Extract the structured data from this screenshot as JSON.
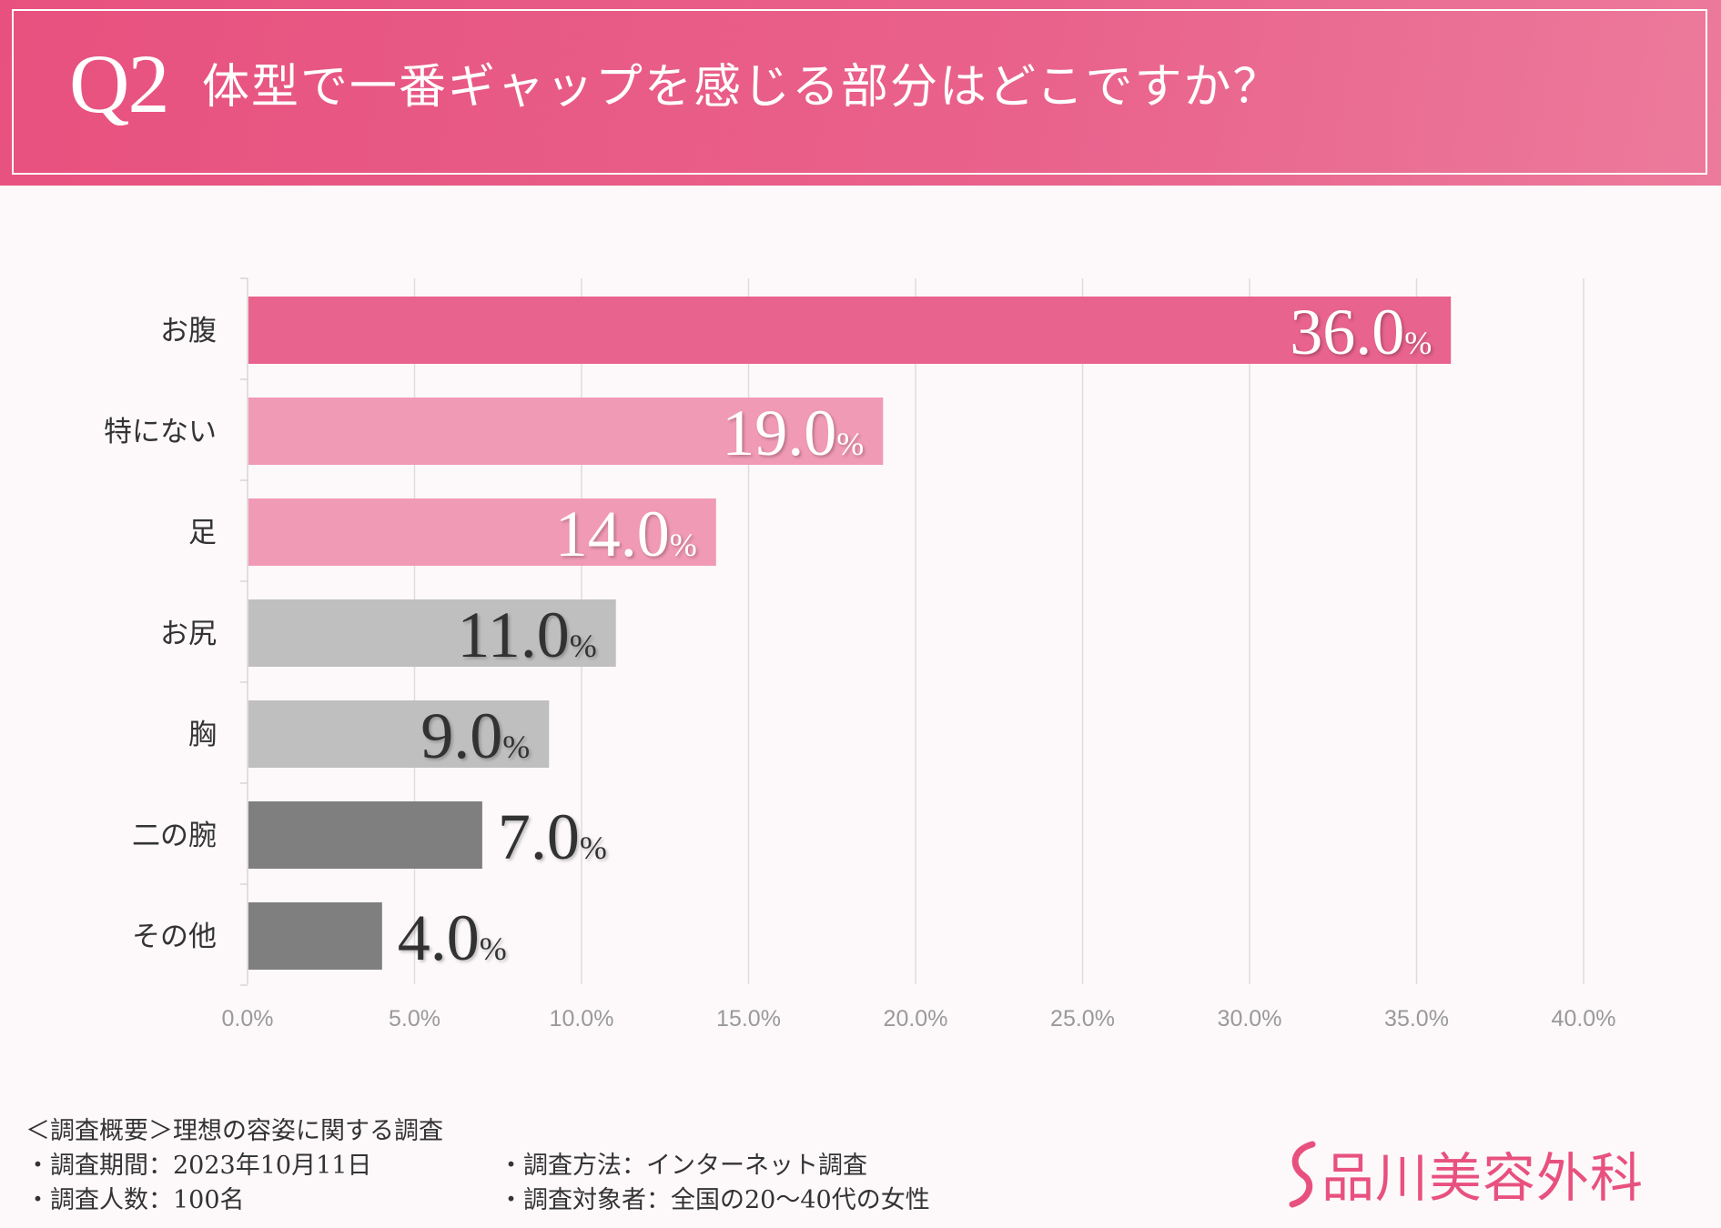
{
  "header": {
    "question_number": "Q2",
    "question_text": "体型で一番ギャップを感じる部分はどこですか？"
  },
  "chart_data": {
    "type": "bar",
    "orientation": "horizontal",
    "title": "体型で一番ギャップを感じる部分はどこですか？",
    "categories": [
      "お腹",
      "特にない",
      "足",
      "お尻",
      "胸",
      "二の腕",
      "その他"
    ],
    "values": [
      36.0,
      19.0,
      14.0,
      11.0,
      9.0,
      7.0,
      4.0
    ],
    "value_labels": [
      "36.0",
      "19.0",
      "14.0",
      "11.0",
      "9.0",
      "7.0",
      "4.0"
    ],
    "value_suffix": "%",
    "bar_colors": [
      "#e8638d",
      "#f19ab5",
      "#f19ab5",
      "#bfbfbf",
      "#bfbfbf",
      "#7f7f7f",
      "#7f7f7f"
    ],
    "label_colors": [
      "#ffffff",
      "#ffffff",
      "#ffffff",
      "#333333",
      "#333333",
      "#333333",
      "#333333"
    ],
    "xlim": [
      0,
      40
    ],
    "x_ticks": [
      "0.0%",
      "5.0%",
      "10.0%",
      "15.0%",
      "20.0%",
      "25.0%",
      "30.0%",
      "35.0%",
      "40.0%"
    ],
    "x_tick_values": [
      0,
      5,
      10,
      15,
      20,
      25,
      30,
      35,
      40
    ],
    "grid": true,
    "xlabel": "",
    "ylabel": ""
  },
  "footer": {
    "overview": "＜調査概要＞理想の容姿に関する調査",
    "period": "・調査期間：2023年10月11日",
    "respondents": "・調査人数：100名",
    "method": "・調査方法：インターネット調査",
    "target": "・調査対象者：全国の20〜40代の女性"
  },
  "brand": {
    "name": "品川美容外科",
    "color": "#e8517f"
  },
  "colors": {
    "header_bg": "#e8517f",
    "background": "#fdf9fa",
    "grid": "#e0dcdd",
    "tick_text": "#999999"
  }
}
